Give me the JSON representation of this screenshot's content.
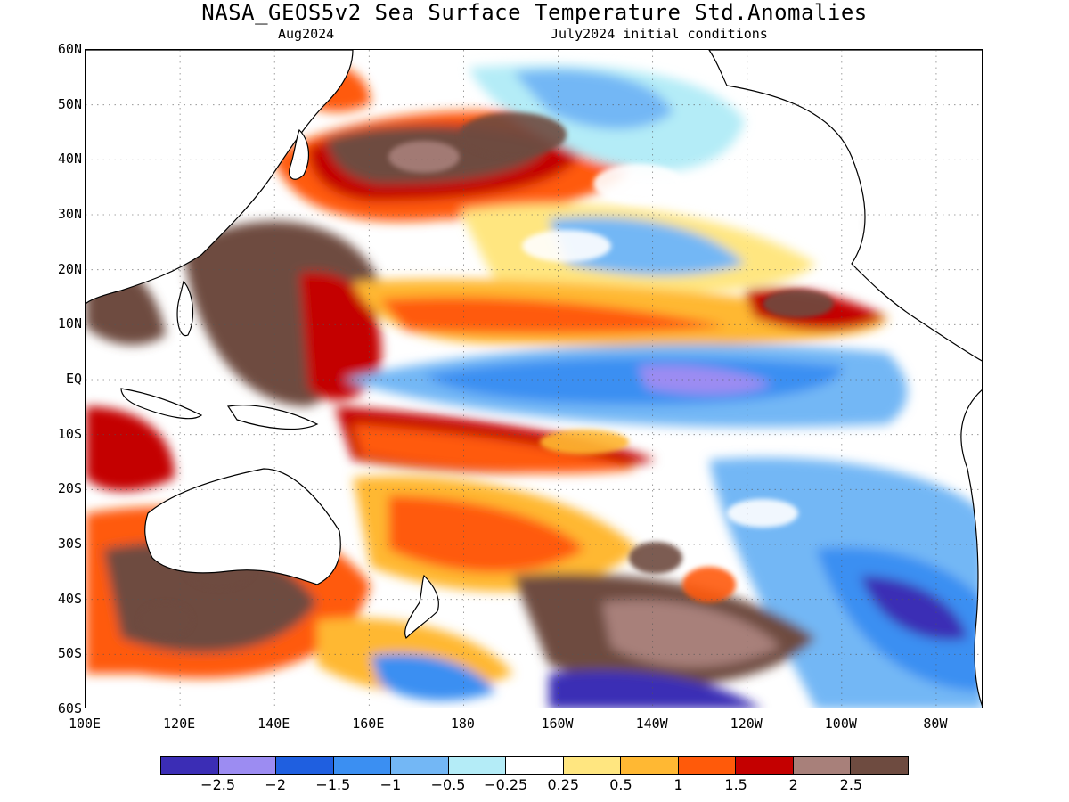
{
  "header": {
    "title": "NASA_GEOS5v2 Sea Surface Temperature Std.Anomalies",
    "valid_month": "Aug2024",
    "initial_conditions": "July2024 initial conditions"
  },
  "map": {
    "lat_labels": [
      "60N",
      "50N",
      "40N",
      "30N",
      "20N",
      "10N",
      "EQ",
      "10S",
      "20S",
      "30S",
      "40S",
      "50S",
      "60S"
    ],
    "lon_labels": [
      "100E",
      "120E",
      "140E",
      "160E",
      "180",
      "160W",
      "140W",
      "120W",
      "100W",
      "80W"
    ],
    "lat_range": [
      -60,
      60
    ],
    "lon_range_east": [
      100,
      290
    ],
    "grid": "dotted",
    "land_color": "#ffffff",
    "coastline_color": "#000000"
  },
  "colorbar": {
    "colors": [
      "#3b2db5",
      "#9c8cf2",
      "#1f5fe0",
      "#3b8ff2",
      "#73b7f5",
      "#b4ecf7",
      "#ffffff",
      "#ffe680",
      "#ffb833",
      "#ff5a0a",
      "#c40000",
      "#a8807a",
      "#6e4b40"
    ],
    "tick_labels": [
      "−2.5",
      "−2",
      "−1.5",
      "−1",
      "−0.5",
      "−0.25",
      "0.25",
      "0.5",
      "1",
      "1.5",
      "2",
      "2.5"
    ]
  }
}
